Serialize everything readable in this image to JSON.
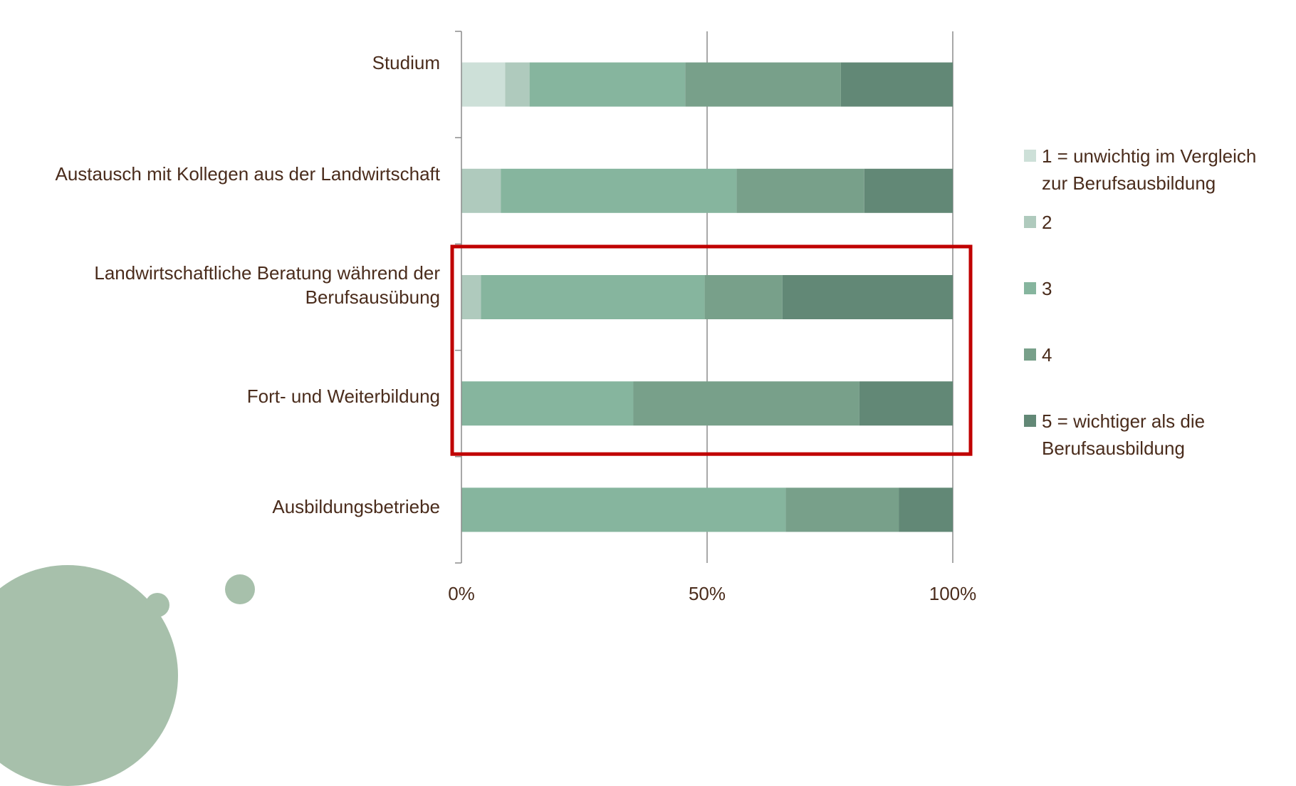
{
  "chart_data": {
    "type": "bar",
    "orientation": "horizontal",
    "stacked": "percent",
    "categories": [
      "Studium",
      "Austausch mit Kollegen aus der Landwirtschaft",
      "Landwirtschaftliche Beratung während der Berufsausübung",
      "Fort- und Weiterbildung",
      "Ausbildungsbetriebe"
    ],
    "series": [
      {
        "name": "1 = unwichtig im Vergleich zur Berufsausbildung",
        "color": "#cde0d8",
        "values": [
          9,
          0,
          0,
          0,
          0
        ]
      },
      {
        "name": "2",
        "color": "#afcabd",
        "values": [
          5,
          8,
          4,
          0,
          0
        ]
      },
      {
        "name": "3",
        "color": "#86b59e",
        "values": [
          32,
          48,
          46,
          35,
          66
        ]
      },
      {
        "name": "4",
        "color": "#78a08a",
        "values": [
          32,
          26,
          16,
          46,
          23
        ]
      },
      {
        "name": "5 = wichtiger als die Berufsausbildung",
        "color": "#628876",
        "values": [
          23,
          18,
          35,
          19,
          11
        ]
      }
    ],
    "xlim": [
      0,
      100
    ],
    "xticks": [
      "0%",
      "50%",
      "100%"
    ],
    "grid": true,
    "legend_position": "right",
    "highlight": {
      "categories": [
        "Landwirtschaftliche Beratung während der Berufsausübung",
        "Fort- und Weiterbildung"
      ],
      "color": "#c00000"
    }
  },
  "legend_labels": [
    "1 = unwichtig im Vergleich\nzur Berufsausbildung",
    "2",
    "3",
    "4",
    "5 = wichtiger als die\nBerufsausbildung"
  ],
  "colors": {
    "text": "#4a2c1c",
    "axis": "#8c8c8c",
    "decoration": "#a7c0ab"
  }
}
